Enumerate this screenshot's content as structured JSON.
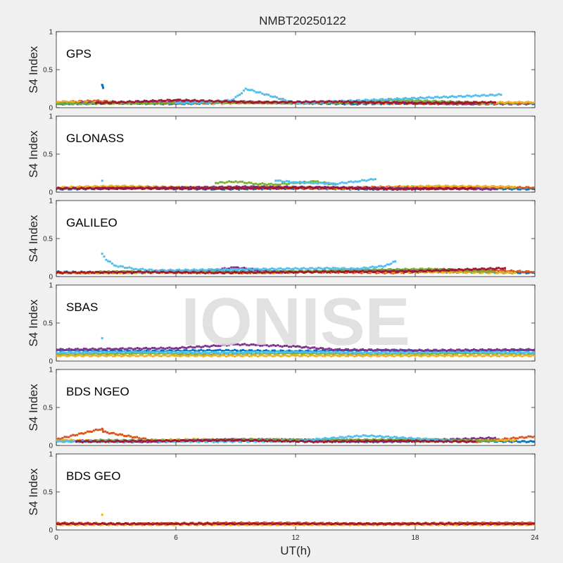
{
  "title": "NMBT20250122",
  "watermark": "IONISE",
  "xlabel": "UT(h)",
  "ylabel": "S4 Index",
  "xlim": [
    0,
    24
  ],
  "xticks": [
    0,
    6,
    12,
    18,
    24
  ],
  "ylim": [
    0,
    1
  ],
  "yticks": [
    0,
    0.5,
    1
  ],
  "palette": [
    "#0072BD",
    "#D95319",
    "#EDB120",
    "#7E2F8E",
    "#77AC30",
    "#4DBEEE",
    "#A2142F"
  ],
  "chart_data": [
    {
      "type": "scatter",
      "panel": "GPS",
      "xlabel": "",
      "ylabel": "S4 Index",
      "xlim": [
        0,
        24
      ],
      "ylim": [
        0,
        1
      ],
      "series": [
        {
          "color": "#0072BD",
          "x": [
            0,
            3,
            6,
            9,
            12,
            15,
            18,
            21,
            24
          ],
          "y": [
            0.05,
            0.06,
            0.05,
            0.07,
            0.06,
            0.05,
            0.06,
            0.05,
            0.05
          ]
        },
        {
          "color": "#D95319",
          "x": [
            0,
            2,
            4,
            8,
            12,
            16,
            20,
            24
          ],
          "y": [
            0.07,
            0.09,
            0.06,
            0.06,
            0.07,
            0.06,
            0.05,
            0.06
          ]
        },
        {
          "color": "#EDB120",
          "x": [
            0,
            3,
            7,
            11,
            15,
            19,
            23,
            24
          ],
          "y": [
            0.08,
            0.06,
            0.07,
            0.06,
            0.07,
            0.06,
            0.07,
            0.07
          ]
        },
        {
          "color": "#7E2F8E",
          "x": [
            1,
            5,
            9,
            13,
            17,
            21
          ],
          "y": [
            0.06,
            0.07,
            0.08,
            0.06,
            0.07,
            0.05
          ]
        },
        {
          "color": "#77AC30",
          "x": [
            0,
            4,
            8,
            14,
            17,
            22
          ],
          "y": [
            0.05,
            0.06,
            0.07,
            0.06,
            0.1,
            0.06
          ]
        },
        {
          "color": "#4DBEEE",
          "x": [
            6,
            7.5,
            8.8,
            9.2,
            9.5,
            12,
            22.3
          ],
          "y": [
            0.06,
            0.07,
            0.1,
            0.17,
            0.25,
            0.06,
            0.17
          ]
        },
        {
          "color": "#A2142F",
          "x": [
            2,
            6,
            10,
            14,
            18,
            22
          ],
          "y": [
            0.06,
            0.1,
            0.07,
            0.08,
            0.06,
            0.07
          ]
        },
        {
          "color": "#0072BD",
          "x": [
            2.3,
            2.35
          ],
          "y": [
            0.3,
            0.26
          ]
        }
      ]
    },
    {
      "type": "scatter",
      "panel": "GLONASS",
      "xlabel": "",
      "ylabel": "S4 Index",
      "xlim": [
        0,
        24
      ],
      "ylim": [
        0,
        1
      ],
      "series": [
        {
          "color": "#0072BD",
          "x": [
            0,
            4,
            8,
            12,
            16,
            20,
            24
          ],
          "y": [
            0.04,
            0.05,
            0.04,
            0.05,
            0.04,
            0.05,
            0.04
          ]
        },
        {
          "color": "#D95319",
          "x": [
            1,
            5,
            9,
            13,
            17,
            21,
            24
          ],
          "y": [
            0.06,
            0.05,
            0.06,
            0.05,
            0.07,
            0.06,
            0.06
          ]
        },
        {
          "color": "#EDB120",
          "x": [
            0,
            3,
            7,
            11,
            15,
            19,
            23
          ],
          "y": [
            0.06,
            0.08,
            0.06,
            0.07,
            0.05,
            0.08,
            0.07
          ]
        },
        {
          "color": "#7E2F8E",
          "x": [
            2,
            6,
            10,
            14,
            18,
            22
          ],
          "y": [
            0.05,
            0.06,
            0.07,
            0.06,
            0.05,
            0.04
          ]
        },
        {
          "color": "#77AC30",
          "x": [
            8,
            9,
            10,
            11,
            12,
            13,
            14
          ],
          "y": [
            0.12,
            0.14,
            0.11,
            0.1,
            0.12,
            0.14,
            0.1
          ]
        },
        {
          "color": "#4DBEEE",
          "x": [
            11,
            12,
            13,
            14,
            15,
            16,
            2.3
          ],
          "y": [
            0.15,
            0.13,
            0.12,
            0.11,
            0.14,
            0.17,
            0.15
          ]
        },
        {
          "color": "#A2142F",
          "x": [
            0,
            4,
            9,
            13,
            17,
            21
          ],
          "y": [
            0.05,
            0.05,
            0.05,
            0.06,
            0.04,
            0.05
          ]
        }
      ]
    },
    {
      "type": "scatter",
      "panel": "GALILEO",
      "xlabel": "",
      "ylabel": "S4 Index",
      "xlim": [
        0,
        24
      ],
      "ylim": [
        0,
        1
      ],
      "series": [
        {
          "color": "#0072BD",
          "x": [
            0,
            4,
            8,
            12,
            16,
            20,
            24
          ],
          "y": [
            0.06,
            0.05,
            0.07,
            0.06,
            0.08,
            0.06,
            0.05
          ]
        },
        {
          "color": "#D95319",
          "x": [
            1,
            5,
            9,
            13,
            17,
            21,
            24
          ],
          "y": [
            0.05,
            0.06,
            0.05,
            0.06,
            0.05,
            0.09,
            0.06
          ]
        },
        {
          "color": "#EDB120",
          "x": [
            0,
            3,
            7,
            11,
            15,
            19,
            23
          ],
          "y": [
            0.05,
            0.05,
            0.06,
            0.05,
            0.07,
            0.06,
            0.05
          ]
        },
        {
          "color": "#7E2F8E",
          "x": [
            5,
            7,
            8,
            9,
            11,
            20
          ],
          "y": [
            0.08,
            0.07,
            0.09,
            0.12,
            0.06,
            0.09
          ]
        },
        {
          "color": "#77AC30",
          "x": [
            2,
            6,
            10,
            14,
            19,
            22
          ],
          "y": [
            0.06,
            0.07,
            0.06,
            0.08,
            0.1,
            0.06
          ]
        },
        {
          "color": "#4DBEEE",
          "x": [
            2.3,
            2.5,
            3,
            4,
            5,
            14,
            15,
            16.5,
            17
          ],
          "y": [
            0.3,
            0.22,
            0.14,
            0.1,
            0.08,
            0.11,
            0.1,
            0.14,
            0.2
          ]
        },
        {
          "color": "#A2142F",
          "x": [
            0,
            4,
            8,
            12,
            18,
            22.5
          ],
          "y": [
            0.05,
            0.06,
            0.05,
            0.06,
            0.07,
            0.11
          ]
        }
      ]
    },
    {
      "type": "scatter",
      "panel": "SBAS",
      "xlabel": "",
      "ylabel": "S4 Index",
      "xlim": [
        0,
        24
      ],
      "ylim": [
        0,
        1
      ],
      "series": [
        {
          "color": "#0072BD",
          "x": [
            0,
            4,
            8,
            12,
            16,
            20,
            24
          ],
          "y": [
            0.14,
            0.13,
            0.14,
            0.13,
            0.14,
            0.13,
            0.14
          ]
        },
        {
          "color": "#77AC30",
          "x": [
            0,
            4,
            8,
            12,
            16,
            20,
            24
          ],
          "y": [
            0.09,
            0.1,
            0.09,
            0.1,
            0.09,
            0.1,
            0.09
          ]
        },
        {
          "color": "#EDB120",
          "x": [
            0,
            6,
            12,
            18,
            24
          ],
          "y": [
            0.07,
            0.07,
            0.07,
            0.07,
            0.07
          ]
        },
        {
          "color": "#4DBEEE",
          "x": [
            0,
            4,
            8,
            12,
            16,
            20,
            24,
            2.3
          ],
          "y": [
            0.11,
            0.12,
            0.11,
            0.12,
            0.11,
            0.12,
            0.11,
            0.3
          ]
        },
        {
          "color": "#7E2F8E",
          "x": [
            0,
            3,
            6,
            8,
            9,
            10,
            11,
            12,
            14,
            18,
            24
          ],
          "y": [
            0.15,
            0.16,
            0.17,
            0.2,
            0.22,
            0.21,
            0.2,
            0.19,
            0.15,
            0.14,
            0.15
          ]
        }
      ]
    },
    {
      "type": "scatter",
      "panel": "BDS NGEO",
      "xlabel": "",
      "ylabel": "S4 Index",
      "xlim": [
        0,
        24
      ],
      "ylim": [
        0,
        1
      ],
      "series": [
        {
          "color": "#0072BD",
          "x": [
            0,
            4,
            8,
            12,
            16,
            20,
            24
          ],
          "y": [
            0.06,
            0.05,
            0.07,
            0.06,
            0.05,
            0.06,
            0.05
          ]
        },
        {
          "color": "#D95319",
          "x": [
            0,
            2.3,
            2.35,
            5,
            9,
            13,
            17,
            21,
            24
          ],
          "y": [
            0.08,
            0.22,
            0.18,
            0.06,
            0.07,
            0.06,
            0.07,
            0.05,
            0.12
          ]
        },
        {
          "color": "#EDB120",
          "x": [
            0,
            3,
            7,
            11,
            15,
            19,
            23
          ],
          "y": [
            0.07,
            0.06,
            0.08,
            0.06,
            0.07,
            0.06,
            0.07
          ]
        },
        {
          "color": "#7E2F8E",
          "x": [
            1,
            5,
            9,
            13,
            17,
            20,
            22
          ],
          "y": [
            0.06,
            0.05,
            0.08,
            0.07,
            0.06,
            0.08,
            0.1
          ]
        },
        {
          "color": "#77AC30",
          "x": [
            2,
            6,
            10,
            14,
            18,
            22
          ],
          "y": [
            0.07,
            0.06,
            0.08,
            0.07,
            0.08,
            0.06
          ]
        },
        {
          "color": "#4DBEEE",
          "x": [
            0,
            4,
            8,
            12,
            15.5,
            20
          ],
          "y": [
            0.05,
            0.06,
            0.05,
            0.06,
            0.13,
            0.06
          ]
        },
        {
          "color": "#A2142F",
          "x": [
            1,
            5,
            9,
            13,
            17,
            21
          ],
          "y": [
            0.05,
            0.06,
            0.07,
            0.05,
            0.06,
            0.05
          ]
        }
      ]
    },
    {
      "type": "scatter",
      "panel": "BDS GEO",
      "xlabel": "UT(h)",
      "ylabel": "S4 Index",
      "xlim": [
        0,
        24
      ],
      "ylim": [
        0,
        1
      ],
      "series": [
        {
          "color": "#EDB120",
          "x": [
            0,
            4,
            8,
            12,
            16,
            20,
            24,
            2.3
          ],
          "y": [
            0.07,
            0.07,
            0.07,
            0.07,
            0.07,
            0.07,
            0.07,
            0.2
          ]
        },
        {
          "color": "#D95319",
          "x": [
            0,
            4,
            8,
            12,
            16,
            20,
            24
          ],
          "y": [
            0.09,
            0.08,
            0.09,
            0.09,
            0.08,
            0.09,
            0.09
          ]
        },
        {
          "color": "#A2142F",
          "x": [
            0,
            6,
            12,
            18,
            24
          ],
          "y": [
            0.08,
            0.08,
            0.08,
            0.08,
            0.08
          ]
        }
      ]
    }
  ]
}
